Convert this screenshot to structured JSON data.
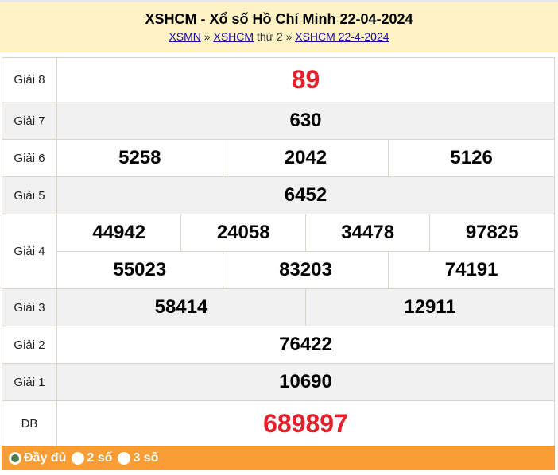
{
  "header": {
    "title": "XSHCM - Xổ số Hồ Chí Minh 22-04-2024",
    "crumb1": "XSMN",
    "sep1": "»",
    "crumb2": "XSHCM",
    "crumb2_suffix": "thứ 2",
    "sep2": "»",
    "crumb3": "XSHCM 22-4-2024"
  },
  "prizes": {
    "g8": {
      "label": "Giải 8",
      "values": [
        "89"
      ]
    },
    "g7": {
      "label": "Giải 7",
      "values": [
        "630"
      ]
    },
    "g6": {
      "label": "Giải 6",
      "values": [
        "5258",
        "2042",
        "5126"
      ]
    },
    "g5": {
      "label": "Giải 5",
      "values": [
        "6452"
      ]
    },
    "g4": {
      "label": "Giải 4",
      "values": [
        "44942",
        "24058",
        "34478",
        "97825",
        "55023",
        "83203",
        "74191"
      ]
    },
    "g3": {
      "label": "Giải 3",
      "values": [
        "58414",
        "12911"
      ]
    },
    "g2": {
      "label": "Giải 2",
      "values": [
        "76422"
      ]
    },
    "g1": {
      "label": "Giải 1",
      "values": [
        "10690"
      ]
    },
    "db": {
      "label": "ĐB",
      "values": [
        "689897"
      ]
    }
  },
  "footer": {
    "options": [
      {
        "label": "Đầy đủ",
        "selected": true
      },
      {
        "label": "2 số",
        "selected": false
      },
      {
        "label": "3 số",
        "selected": false
      }
    ]
  },
  "colors": {
    "header_bg": "#fff2c4",
    "highlight": "#e4202b",
    "footer_bg": "#f99d34"
  }
}
